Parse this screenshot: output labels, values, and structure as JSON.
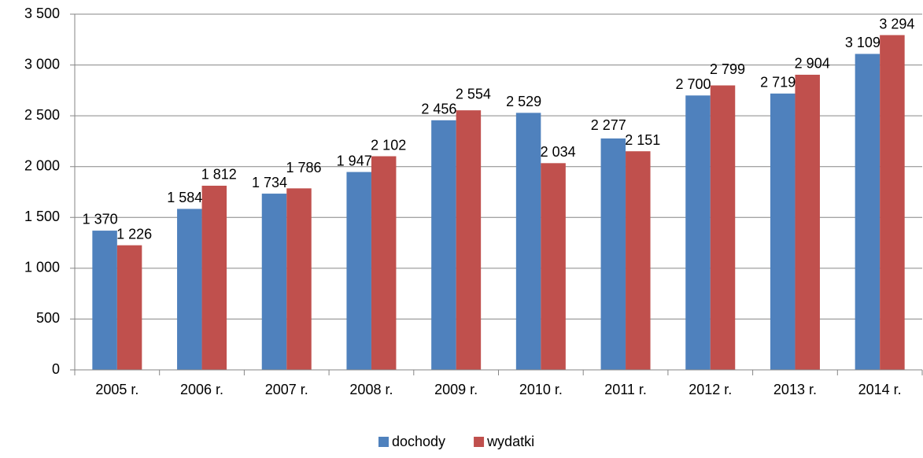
{
  "chart_data": {
    "type": "bar",
    "categories": [
      "2005 r.",
      "2006 r.",
      "2007 r.",
      "2008 r.",
      "2009 r.",
      "2010 r.",
      "2011 r.",
      "2012 r.",
      "2013 r.",
      "2014 r."
    ],
    "series": [
      {
        "name": "dochody",
        "color": "#4f81bd",
        "values": [
          1370,
          1584,
          1734,
          1947,
          2456,
          2529,
          2277,
          2700,
          2719,
          3109
        ],
        "value_labels": [
          "1 370",
          "1 584",
          "1 734",
          "1 947",
          "2 456",
          "2 529",
          "2 277",
          "2 700",
          "2 719",
          "3 109"
        ]
      },
      {
        "name": "wydatki",
        "color": "#c0504d",
        "values": [
          1226,
          1812,
          1786,
          2102,
          2554,
          2034,
          2151,
          2799,
          2904,
          3294
        ],
        "value_labels": [
          "1 226",
          "1 812",
          "1 786",
          "2 102",
          "2 554",
          "2 034",
          "2 151",
          "2 799",
          "2 904",
          "3 294"
        ]
      }
    ],
    "ylim": [
      0,
      3500
    ],
    "yticks": [
      0,
      500,
      {
        "value": 1000,
        "label": "1 000"
      },
      {
        "value": 1500,
        "label": "1 500"
      },
      {
        "value": 2000,
        "label": "2 000"
      },
      {
        "value": 2500,
        "label": "2 500"
      },
      {
        "value": 3000,
        "label": "3 000"
      },
      {
        "value": 3500,
        "label": "3 500"
      }
    ],
    "grid": true,
    "legend": "bottom"
  }
}
